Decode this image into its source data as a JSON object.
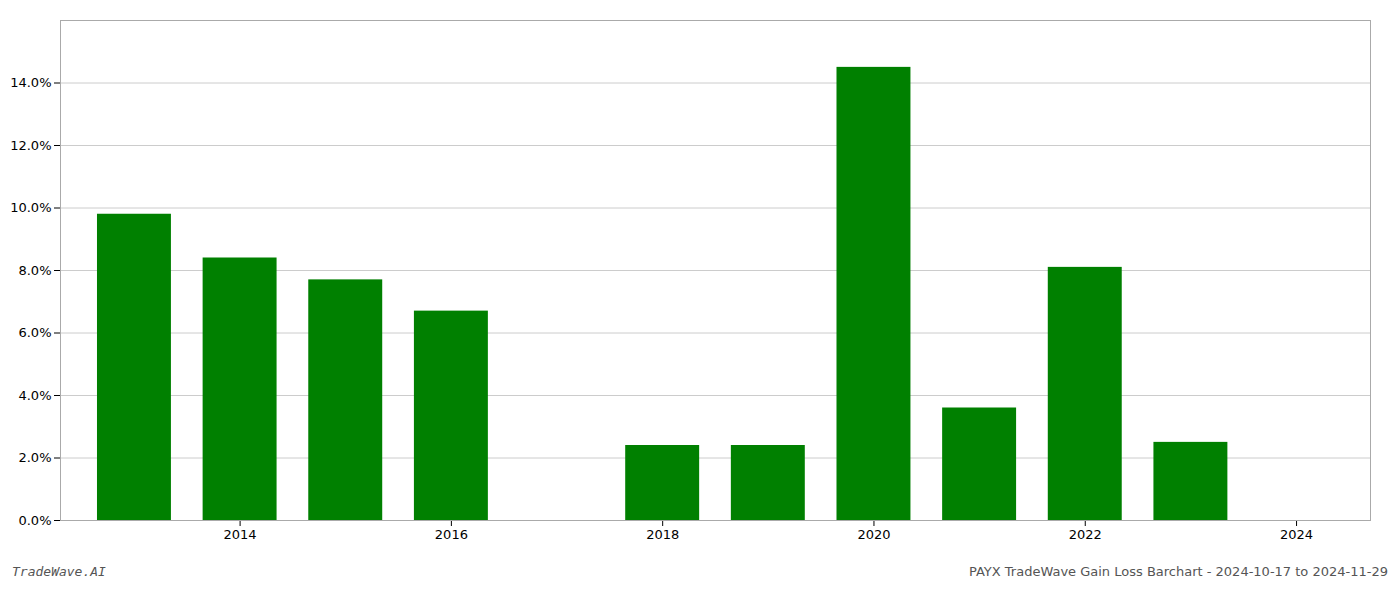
{
  "chart_data": {
    "type": "bar",
    "x": [
      2013,
      2014,
      2015,
      2016,
      2018,
      2019,
      2020,
      2021,
      2022,
      2023
    ],
    "values": [
      0.098,
      0.084,
      0.077,
      0.067,
      0.024,
      0.024,
      0.145,
      0.036,
      0.081,
      0.025
    ],
    "color": "#008000",
    "xlim": [
      2012.3,
      2024.7
    ],
    "xticks": [
      2014,
      2016,
      2018,
      2020,
      2022,
      2024
    ],
    "ylim": [
      0,
      0.16
    ],
    "yticks": [
      {
        "value": 0.0,
        "label": "0.0%"
      },
      {
        "value": 0.02,
        "label": "2.0%"
      },
      {
        "value": 0.04,
        "label": "4.0%"
      },
      {
        "value": 0.06,
        "label": "6.0%"
      },
      {
        "value": 0.08,
        "label": "8.0%"
      },
      {
        "value": 0.1,
        "label": "10.0%"
      },
      {
        "value": 0.12,
        "label": "12.0%"
      },
      {
        "value": 0.14,
        "label": "14.0%"
      }
    ],
    "grid": true,
    "annotations": [
      "TradeWave.AI",
      "PAYX TradeWave Gain Loss Barchart - 2024-10-17 to 2024-11-29"
    ]
  }
}
